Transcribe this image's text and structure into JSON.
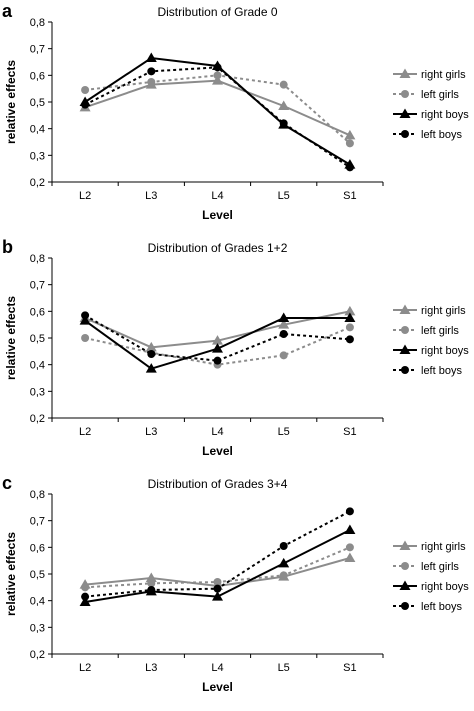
{
  "chart_data": [
    {
      "type": "line",
      "panel": "a",
      "title": "Distribution of Grade 0",
      "xlabel": "Level",
      "ylabel": "relative effects",
      "categories": [
        "L2",
        "L3",
        "L4",
        "L5",
        "S1"
      ],
      "yticks": [
        "0,2",
        "0,3",
        "0,4",
        "0,5",
        "0,6",
        "0,7",
        "0,8"
      ],
      "ylim": [
        0.2,
        0.8
      ],
      "legend_position": "right",
      "series": [
        {
          "name": "right girls",
          "values": [
            0.48,
            0.565,
            0.58,
            0.485,
            0.375
          ]
        },
        {
          "name": "left girls",
          "values": [
            0.545,
            0.575,
            0.6,
            0.565,
            0.345
          ]
        },
        {
          "name": "right boys",
          "values": [
            0.5,
            0.665,
            0.635,
            0.415,
            0.265
          ]
        },
        {
          "name": "left boys",
          "values": [
            0.49,
            0.615,
            0.63,
            0.42,
            0.255
          ]
        }
      ]
    },
    {
      "type": "line",
      "panel": "b",
      "title": "Distribution of Grades 1+2",
      "xlabel": "Level",
      "ylabel": "relative effects",
      "categories": [
        "L2",
        "L3",
        "L4",
        "L5",
        "S1"
      ],
      "yticks": [
        "0,2",
        "0,3",
        "0,4",
        "0,5",
        "0,6",
        "0,7",
        "0,8"
      ],
      "ylim": [
        0.2,
        0.8
      ],
      "legend_position": "right",
      "series": [
        {
          "name": "right girls",
          "values": [
            0.575,
            0.465,
            0.49,
            0.55,
            0.6
          ]
        },
        {
          "name": "left girls",
          "values": [
            0.5,
            0.445,
            0.4,
            0.435,
            0.54
          ]
        },
        {
          "name": "right boys",
          "values": [
            0.565,
            0.385,
            0.46,
            0.575,
            0.575
          ]
        },
        {
          "name": "left boys",
          "values": [
            0.585,
            0.44,
            0.415,
            0.515,
            0.495
          ]
        }
      ]
    },
    {
      "type": "line",
      "panel": "c",
      "title": "Distribution of Grades 3+4",
      "xlabel": "Level",
      "ylabel": "relative effects",
      "categories": [
        "L2",
        "L3",
        "L4",
        "L5",
        "S1"
      ],
      "yticks": [
        "0,2",
        "0,3",
        "0,4",
        "0,5",
        "0,6",
        "0,7",
        "0,8"
      ],
      "ylim": [
        0.2,
        0.8
      ],
      "legend_position": "right",
      "series": [
        {
          "name": "right girls",
          "values": [
            0.46,
            0.485,
            0.455,
            0.49,
            0.56
          ]
        },
        {
          "name": "left girls",
          "values": [
            0.45,
            0.465,
            0.47,
            0.495,
            0.6
          ]
        },
        {
          "name": "right boys",
          "values": [
            0.395,
            0.435,
            0.415,
            0.54,
            0.665
          ]
        },
        {
          "name": "left boys",
          "values": [
            0.415,
            0.44,
            0.445,
            0.605,
            0.735
          ]
        }
      ]
    }
  ],
  "styles": {
    "right girls": {
      "color": "#8c8c8c",
      "dash": "",
      "marker": "triangle"
    },
    "left girls": {
      "color": "#8c8c8c",
      "dash": "3,3",
      "marker": "circle"
    },
    "right boys": {
      "color": "#000000",
      "dash": "",
      "marker": "triangle"
    },
    "left boys": {
      "color": "#000000",
      "dash": "3,3",
      "marker": "circle"
    }
  }
}
